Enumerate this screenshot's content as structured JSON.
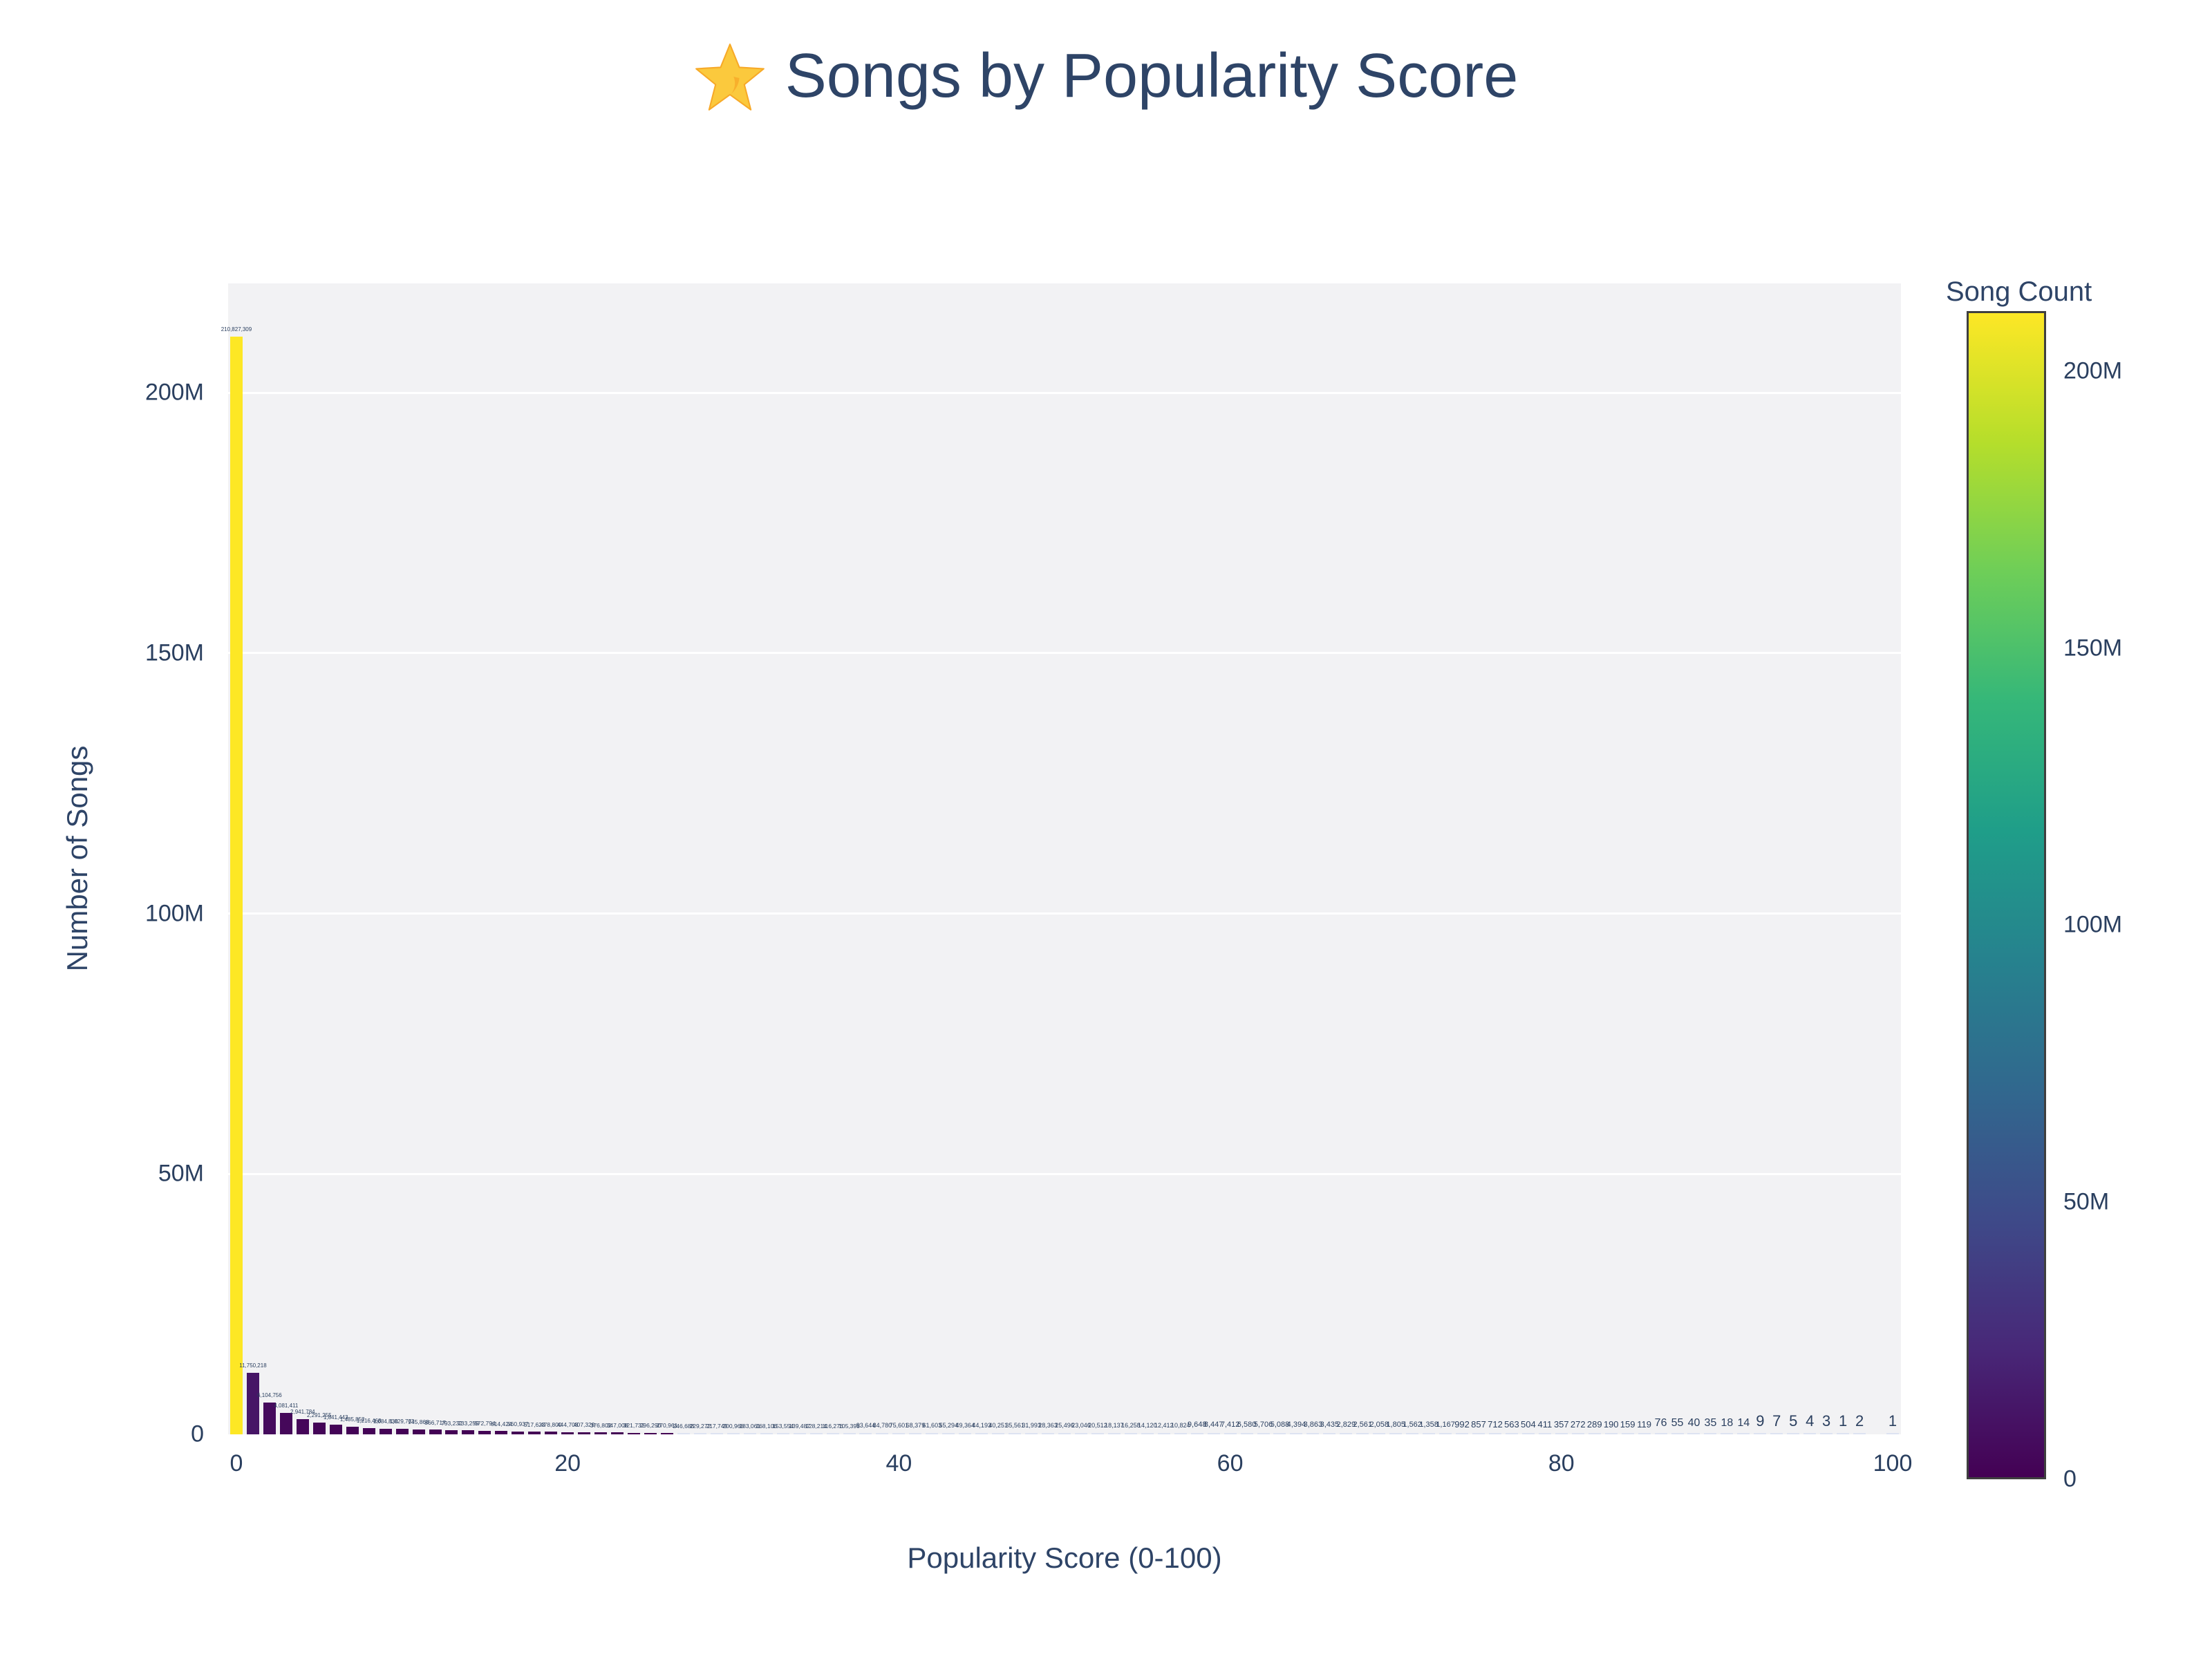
{
  "title": {
    "text": "Songs by Popularity Score",
    "icon": "star"
  },
  "colors": {
    "title_text": "#2e4467",
    "tick_text": "#2a3f5f",
    "plot_background": "#f2f2f4",
    "gridline": "#ffffff",
    "max_bar": "#fde725",
    "min_bar": "#440154",
    "hairline_bar": "#dde3f2",
    "colorbar_border": "#3f3f3f",
    "star_fill": "#fbc93d",
    "star_shade": "#f7a928"
  },
  "chart_data": {
    "type": "bar",
    "title": "Songs by Popularity Score",
    "xlabel": "Popularity Score (0-100)",
    "ylabel": "Number of Songs",
    "x_start": 0,
    "x_step": 1,
    "values": [
      210827309,
      11750218,
      6104756,
      4081411,
      2941784,
      2291255,
      1841443,
      1485852,
      1216468,
      1084838,
      1029773,
      945868,
      866717,
      793232,
      733259,
      672794,
      614424,
      560937,
      517623,
      478800,
      444708,
      407329,
      376802,
      347008,
      321732,
      296290,
      270961,
      246688,
      229272,
      217749,
      200968,
      183061,
      168106,
      153554,
      139487,
      128214,
      116276,
      105395,
      93644,
      84780,
      75601,
      68379,
      61603,
      55294,
      49364,
      44193,
      40251,
      35561,
      31993,
      28363,
      25496,
      23046,
      20512,
      18137,
      16258,
      14120,
      12412,
      10824,
      9648,
      8447,
      7412,
      6580,
      5706,
      5088,
      4394,
      3863,
      3435,
      2829,
      2561,
      2058,
      1805,
      1562,
      1358,
      1167,
      992,
      857,
      712,
      563,
      504,
      411,
      357,
      272,
      289,
      190,
      159,
      119,
      76,
      55,
      40,
      35,
      18,
      14,
      9,
      7,
      5,
      4,
      3,
      1,
      2,
      0,
      1
    ],
    "ylim": [
      0,
      221000000
    ],
    "grid": true,
    "legend_position": "none",
    "yticks": [
      {
        "label": "0",
        "value": 0
      },
      {
        "label": "50M",
        "value": 50000000
      },
      {
        "label": "100M",
        "value": 100000000
      },
      {
        "label": "150M",
        "value": 150000000
      },
      {
        "label": "200M",
        "value": 200000000
      }
    ],
    "xticks": [
      {
        "label": "0",
        "value": 0
      },
      {
        "label": "20",
        "value": 20
      },
      {
        "label": "40",
        "value": 40
      },
      {
        "label": "60",
        "value": 60
      },
      {
        "label": "80",
        "value": 80
      },
      {
        "label": "100",
        "value": 100
      }
    ],
    "colorbar": {
      "title": "Song Count",
      "max": 210827309,
      "min": 0,
      "ticks": [
        {
          "label": "200M",
          "value": 200000000
        },
        {
          "label": "150M",
          "value": 150000000
        },
        {
          "label": "100M",
          "value": 100000000
        },
        {
          "label": "50M",
          "value": 50000000
        },
        {
          "label": "0",
          "value": 0
        }
      ]
    },
    "colorscale": [
      "#440154",
      "#482878",
      "#3e4a89",
      "#31688e",
      "#26828e",
      "#1f9e89",
      "#35b779",
      "#6ece58",
      "#b5de2b",
      "#fde725"
    ]
  }
}
